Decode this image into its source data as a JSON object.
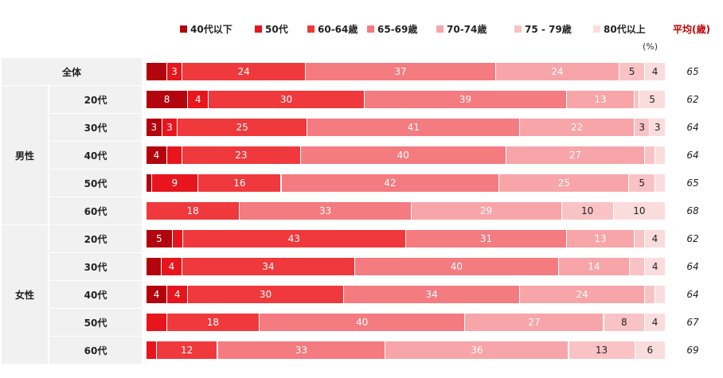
{
  "legend": {
    "categories": [
      "40代以下",
      "50代",
      "60-64歳",
      "65-69歳",
      "70-74歳",
      "75 - 79歳",
      "80代以上"
    ],
    "colors": [
      "#b3050e",
      "#e8151d",
      "#f0393c",
      "#f47b80",
      "#f7a5a8",
      "#f9c3c5",
      "#fbdcdd"
    ]
  },
  "avg_header": "平均(歳)",
  "unit": "(%)",
  "groups": [
    {
      "label": "",
      "rows": [
        "全体"
      ]
    },
    {
      "label": "男性",
      "rows": [
        "20代",
        "30代",
        "40代",
        "50代",
        "60代"
      ]
    },
    {
      "label": "女性",
      "rows": [
        "20代",
        "30代",
        "40代",
        "50代",
        "60代"
      ]
    }
  ],
  "chart_data": {
    "type": "bar",
    "orientation": "horizontal",
    "stacked": "100%",
    "categories": [
      "全体",
      "男性 20代",
      "男性 30代",
      "男性 40代",
      "男性 50代",
      "男性 60代",
      "女性 20代",
      "女性 30代",
      "女性 40代",
      "女性 50代",
      "女性 60代"
    ],
    "series": [
      {
        "name": "40代以下",
        "values": [
          4,
          8,
          3,
          4,
          1,
          0,
          5,
          3,
          4,
          0,
          0
        ],
        "labels": [
          "",
          "8",
          "3",
          "4",
          "",
          "",
          "5",
          "",
          "4",
          "",
          ""
        ]
      },
      {
        "name": "50代",
        "values": [
          3,
          4,
          3,
          3,
          9,
          0,
          2,
          4,
          4,
          4,
          2
        ],
        "labels": [
          "3",
          "4",
          "3",
          "",
          "9",
          "",
          "",
          "4",
          "4",
          "",
          ""
        ]
      },
      {
        "name": "60-64歳",
        "values": [
          24,
          30,
          25,
          23,
          16,
          18,
          43,
          34,
          30,
          18,
          12
        ],
        "labels": [
          "24",
          "30",
          "25",
          "23",
          "16",
          "18",
          "43",
          "34",
          "30",
          "18",
          "12"
        ]
      },
      {
        "name": "65-69歳",
        "values": [
          37,
          39,
          41,
          40,
          42,
          33,
          31,
          40,
          34,
          40,
          33
        ],
        "labels": [
          "37",
          "39",
          "41",
          "40",
          "42",
          "33",
          "31",
          "40",
          "34",
          "40",
          "33"
        ]
      },
      {
        "name": "70-74歳",
        "values": [
          24,
          13,
          22,
          27,
          25,
          29,
          13,
          14,
          24,
          27,
          36
        ],
        "labels": [
          "24",
          "13",
          "22",
          "27",
          "25",
          "29",
          "13",
          "14",
          "24",
          "27",
          "36"
        ]
      },
      {
        "name": "75 - 79歳",
        "values": [
          5,
          1,
          3,
          2,
          5,
          10,
          2,
          3,
          2,
          8,
          13
        ],
        "labels": [
          "5",
          "",
          "3",
          "",
          "5",
          "10",
          "",
          "",
          "",
          "8",
          "13"
        ]
      },
      {
        "name": "80代以上",
        "values": [
          4,
          5,
          3,
          2,
          2,
          10,
          4,
          4,
          2,
          4,
          6
        ],
        "labels": [
          "4",
          "5",
          "3",
          "",
          "",
          "10",
          "4",
          "4",
          "",
          "4",
          "6"
        ]
      }
    ],
    "averages": [
      "65",
      "62",
      "64",
      "64",
      "65",
      "68",
      "62",
      "64",
      "64",
      "67",
      "69"
    ],
    "xlim": [
      0,
      100
    ]
  }
}
